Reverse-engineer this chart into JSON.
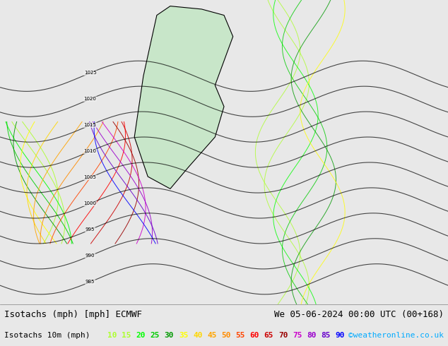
{
  "title_line1": "Isotachs (mph) [mph] ECMWF",
  "title_line2": "We 05-06-2024 00:00 UTC (00+168)",
  "legend_label": "Isotachs 10m (mph)",
  "copyright": "©weatheronline.co.uk",
  "isotach_values": [
    10,
    15,
    20,
    25,
    30,
    35,
    40,
    45,
    50,
    55,
    60,
    65,
    70,
    75,
    80,
    85,
    90
  ],
  "isotach_colors": [
    "#adff2f",
    "#adff2f",
    "#00ff00",
    "#00cc00",
    "#009900",
    "#ffff00",
    "#ffd700",
    "#ffa500",
    "#ff8c00",
    "#ff4500",
    "#ff0000",
    "#cc0000",
    "#990000",
    "#cc00cc",
    "#9900cc",
    "#6600cc",
    "#0000ff"
  ],
  "bg_color": "#e8e8e8",
  "map_bg": "#f0f0f0",
  "title_fontsize": 9,
  "legend_fontsize": 8,
  "bottom_bar_height": 0.08,
  "figure_width": 6.34,
  "figure_height": 4.9,
  "dpi": 100
}
